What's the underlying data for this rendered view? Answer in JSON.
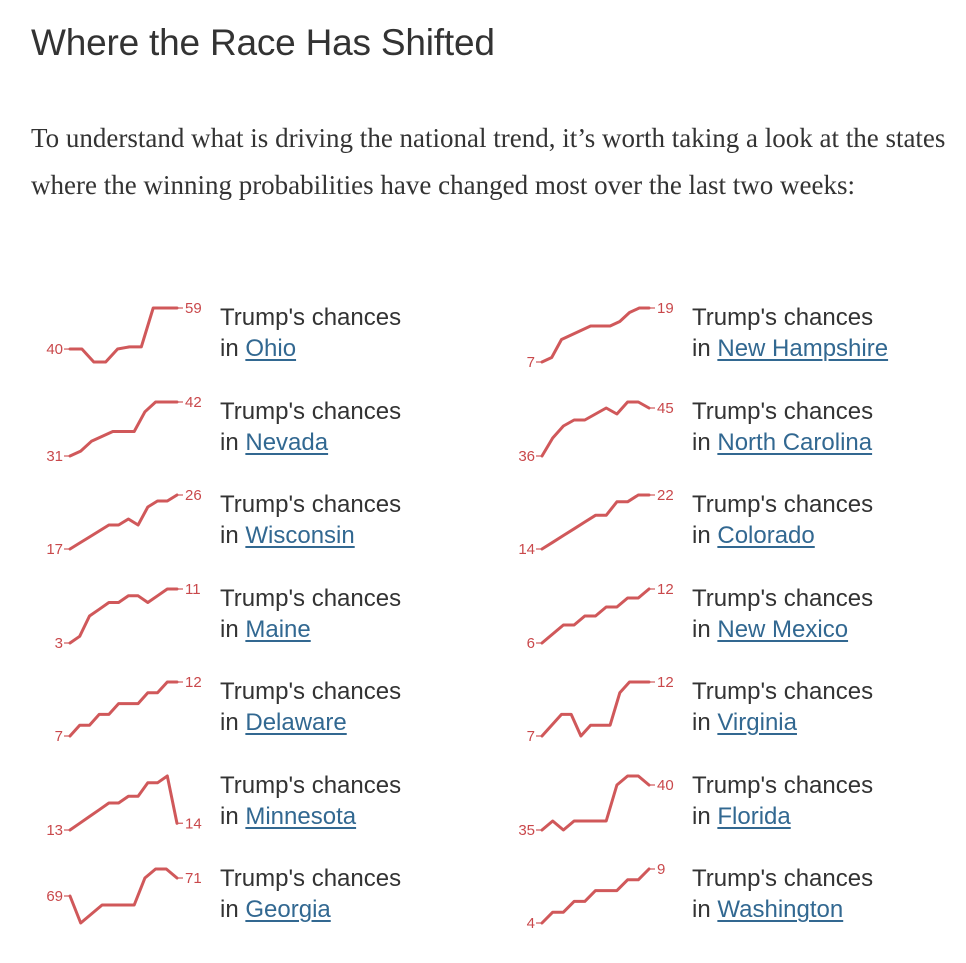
{
  "title": "Where the Race Has Shifted",
  "intro": "To understand what is driving the national trend, it’s worth taking a look at the states where the winning probabilities have changed most over the last two weeks:",
  "caption_prefix": "Trump's chances",
  "caption_in": "in",
  "colors": {
    "line": "#d0585a",
    "label": "#c9484b",
    "link": "#326891",
    "text": "#333333"
  },
  "chart_data": [
    {
      "type": "line",
      "state": "Ohio",
      "start_label": "40",
      "end_label": "59",
      "values": [
        40,
        40,
        34,
        34,
        40,
        41,
        41,
        59,
        59,
        59
      ]
    },
    {
      "type": "line",
      "state": "New Hampshire",
      "start_label": "7",
      "end_label": "19",
      "values": [
        7,
        8,
        12,
        13,
        14,
        15,
        15,
        15,
        16,
        18,
        19,
        19
      ]
    },
    {
      "type": "line",
      "state": "Nevada",
      "start_label": "31",
      "end_label": "42",
      "values": [
        31,
        32,
        34,
        35,
        36,
        36,
        36,
        40,
        42,
        42,
        42
      ]
    },
    {
      "type": "line",
      "state": "North Carolina",
      "start_label": "36",
      "end_label": "45",
      "values": [
        36,
        39,
        41,
        42,
        42,
        43,
        44,
        43,
        45,
        45,
        44
      ]
    },
    {
      "type": "line",
      "state": "Wisconsin",
      "start_label": "17",
      "end_label": "26",
      "values": [
        17,
        18,
        19,
        20,
        21,
        21,
        22,
        21,
        24,
        25,
        25,
        26
      ]
    },
    {
      "type": "line",
      "state": "Colorado",
      "start_label": "14",
      "end_label": "22",
      "values": [
        14,
        15,
        16,
        17,
        18,
        19,
        19,
        21,
        21,
        22,
        22
      ]
    },
    {
      "type": "line",
      "state": "Maine",
      "start_label": "3",
      "end_label": "11",
      "values": [
        3,
        4,
        7,
        8,
        9,
        9,
        10,
        10,
        9,
        10,
        11,
        11
      ]
    },
    {
      "type": "line",
      "state": "New Mexico",
      "start_label": "6",
      "end_label": "12",
      "values": [
        6,
        7,
        8,
        8,
        9,
        9,
        10,
        10,
        11,
        11,
        12
      ]
    },
    {
      "type": "line",
      "state": "Delaware",
      "start_label": "7",
      "end_label": "12",
      "values": [
        7,
        8,
        8,
        9,
        9,
        10,
        10,
        10,
        11,
        11,
        12,
        12
      ]
    },
    {
      "type": "line",
      "state": "Virginia",
      "start_label": "7",
      "end_label": "12",
      "values": [
        7,
        8,
        9,
        9,
        7,
        8,
        8,
        8,
        11,
        12,
        12,
        12
      ]
    },
    {
      "type": "line",
      "state": "Minnesota",
      "start_label": "13",
      "end_label": "14",
      "values": [
        13,
        14,
        15,
        16,
        17,
        17,
        18,
        18,
        20,
        20,
        21,
        14
      ]
    },
    {
      "type": "line",
      "state": "Florida",
      "start_label": "35",
      "end_label": "40",
      "values": [
        35,
        36,
        35,
        36,
        36,
        36,
        36,
        40,
        41,
        41,
        40
      ]
    },
    {
      "type": "line",
      "state": "Georgia",
      "start_label": "69",
      "end_label": "71",
      "values": [
        69,
        66,
        67,
        68,
        68,
        68,
        68,
        71,
        72,
        72,
        71
      ]
    },
    {
      "type": "line",
      "state": "Washington",
      "start_label": "4",
      "end_label": "9",
      "values": [
        4,
        5,
        5,
        6,
        6,
        7,
        7,
        7,
        8,
        8,
        9
      ]
    }
  ]
}
